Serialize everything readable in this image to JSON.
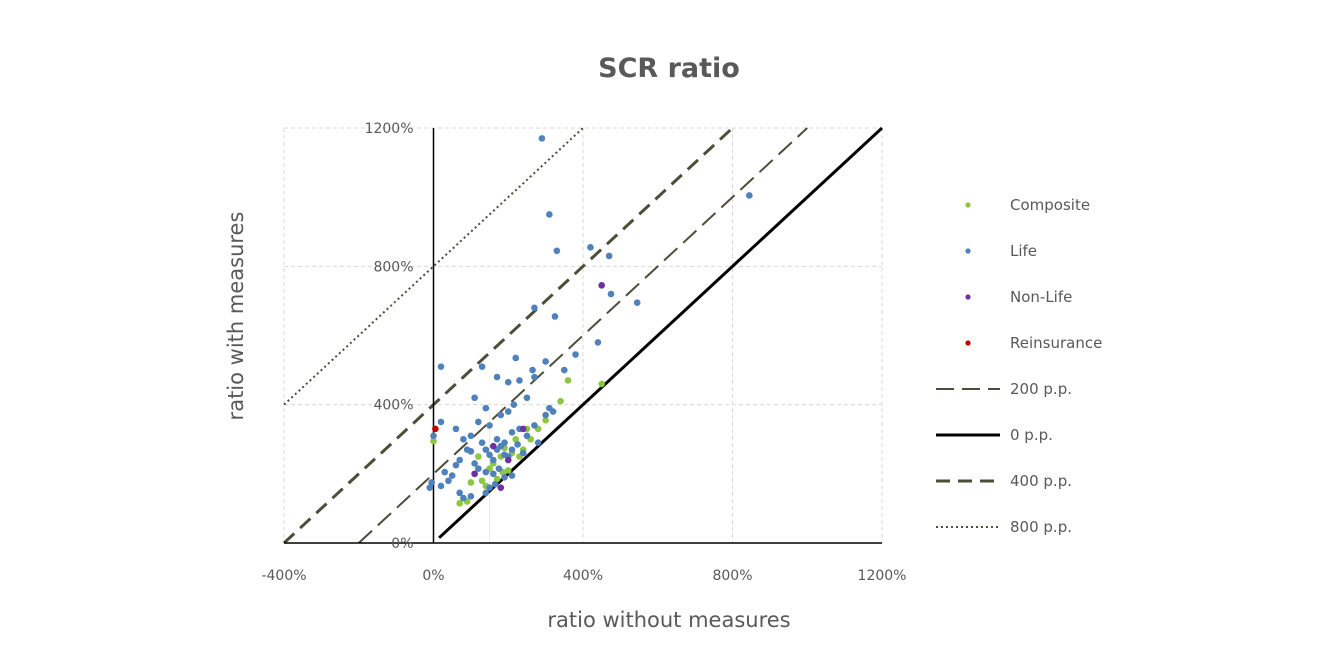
{
  "chart_data": {
    "type": "scatter",
    "title": "SCR ratio",
    "xlabel": "ratio without measures",
    "ylabel": "ratio with measures",
    "xlim": [
      -400,
      1200
    ],
    "ylim": [
      0,
      1200
    ],
    "x_ticks": [
      "-400%",
      "0%",
      "400%",
      "800%",
      "1200%"
    ],
    "y_ticks": [
      "0%",
      "400%",
      "800%",
      "1200%"
    ],
    "grid": true,
    "legend_position": "right",
    "series": [
      {
        "name": "Composite",
        "color": "#8dc63f",
        "points": [
          [
            70,
            115
          ],
          [
            90,
            120
          ],
          [
            100,
            175
          ],
          [
            110,
            200
          ],
          [
            120,
            250
          ],
          [
            130,
            180
          ],
          [
            140,
            165
          ],
          [
            150,
            215
          ],
          [
            160,
            230
          ],
          [
            170,
            185
          ],
          [
            180,
            250
          ],
          [
            185,
            205
          ],
          [
            190,
            275
          ],
          [
            200,
            210
          ],
          [
            210,
            260
          ],
          [
            220,
            300
          ],
          [
            230,
            250
          ],
          [
            240,
            270
          ],
          [
            250,
            330
          ],
          [
            260,
            300
          ],
          [
            280,
            330
          ],
          [
            300,
            355
          ],
          [
            340,
            410
          ],
          [
            360,
            470
          ],
          [
            450,
            460
          ],
          [
            0,
            295
          ]
        ]
      },
      {
        "name": "Life",
        "color": "#4f81bd",
        "points": [
          [
            290,
            1170
          ],
          [
            310,
            950
          ],
          [
            330,
            845
          ],
          [
            420,
            855
          ],
          [
            470,
            830
          ],
          [
            845,
            1005
          ],
          [
            270,
            680
          ],
          [
            325,
            655
          ],
          [
            475,
            720
          ],
          [
            545,
            695
          ],
          [
            440,
            580
          ],
          [
            20,
            510
          ],
          [
            130,
            510
          ],
          [
            220,
            535
          ],
          [
            300,
            525
          ],
          [
            380,
            545
          ],
          [
            350,
            500
          ],
          [
            270,
            480
          ],
          [
            170,
            480
          ],
          [
            200,
            465
          ],
          [
            230,
            470
          ],
          [
            215,
            400
          ],
          [
            250,
            420
          ],
          [
            310,
            390
          ],
          [
            110,
            420
          ],
          [
            140,
            390
          ],
          [
            180,
            370
          ],
          [
            200,
            380
          ],
          [
            20,
            350
          ],
          [
            60,
            330
          ],
          [
            80,
            300
          ],
          [
            100,
            310
          ],
          [
            120,
            350
          ],
          [
            150,
            340
          ],
          [
            170,
            300
          ],
          [
            190,
            290
          ],
          [
            210,
            320
          ],
          [
            230,
            330
          ],
          [
            250,
            310
          ],
          [
            270,
            340
          ],
          [
            300,
            370
          ],
          [
            280,
            290
          ],
          [
            320,
            380
          ],
          [
            100,
            265
          ],
          [
            130,
            290
          ],
          [
            140,
            270
          ],
          [
            150,
            255
          ],
          [
            160,
            240
          ],
          [
            170,
            270
          ],
          [
            180,
            280
          ],
          [
            190,
            255
          ],
          [
            200,
            250
          ],
          [
            210,
            270
          ],
          [
            225,
            285
          ],
          [
            240,
            260
          ],
          [
            110,
            230
          ],
          [
            120,
            215
          ],
          [
            140,
            205
          ],
          [
            160,
            200
          ],
          [
            175,
            215
          ],
          [
            70,
            240
          ],
          [
            60,
            225
          ],
          [
            30,
            205
          ],
          [
            -5,
            175
          ],
          [
            -10,
            160
          ],
          [
            20,
            165
          ],
          [
            40,
            180
          ],
          [
            70,
            145
          ],
          [
            80,
            130
          ],
          [
            100,
            135
          ],
          [
            150,
            160
          ],
          [
            140,
            145
          ],
          [
            165,
            170
          ],
          [
            190,
            190
          ],
          [
            210,
            195
          ],
          [
            0,
            310
          ],
          [
            50,
            195
          ],
          [
            90,
            270
          ],
          [
            265,
            500
          ]
        ]
      },
      {
        "name": "Non-Life",
        "color": "#7030a0",
        "points": [
          [
            450,
            745
          ],
          [
            240,
            330
          ],
          [
            160,
            280
          ],
          [
            200,
            240
          ],
          [
            110,
            200
          ],
          [
            180,
            160
          ]
        ]
      },
      {
        "name": "Reinsurance",
        "color": "#c00000",
        "points": [
          [
            5,
            330
          ]
        ]
      }
    ],
    "reference_lines": [
      {
        "name": "200 p.p.",
        "offset": 200,
        "color": "#4d4d3a",
        "style": "long-dash",
        "width": 2
      },
      {
        "name": "0 p.p.",
        "offset": 0,
        "color": "#000000",
        "style": "solid",
        "width": 3
      },
      {
        "name": "400 p.p.",
        "offset": 400,
        "color": "#4d4d3a",
        "style": "dash",
        "width": 3
      },
      {
        "name": "800 p.p.",
        "offset": 800,
        "color": "#4d4d3a",
        "style": "dot",
        "width": 2
      }
    ]
  }
}
